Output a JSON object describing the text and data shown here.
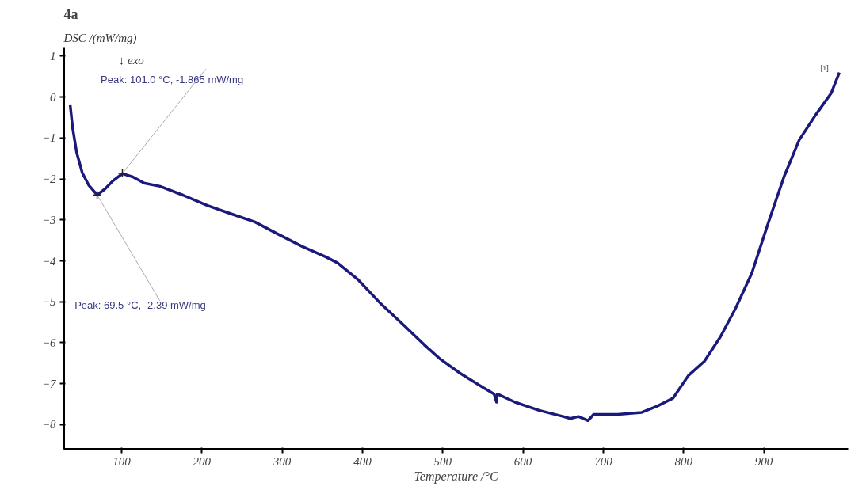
{
  "chart_data": {
    "type": "line",
    "title": "4a",
    "ylabel": "DSC /(mW/mg)",
    "xlabel": "Temperature /°C",
    "x": [
      36,
      39,
      44,
      51,
      59,
      69.5,
      79,
      89,
      101,
      114,
      128,
      148,
      177,
      207,
      236,
      266,
      295,
      325,
      354,
      369,
      394,
      423,
      453,
      477,
      497,
      522,
      551,
      564,
      567,
      568,
      590,
      620,
      650,
      659,
      669,
      681,
      688,
      718,
      748,
      767,
      787,
      806,
      826,
      846,
      865,
      885,
      905,
      925,
      944,
      964,
      984,
      994
    ],
    "series": [
      {
        "color": "#1a1a7a",
        "values": [
          -0.2,
          -0.75,
          -1.35,
          -1.85,
          -2.15,
          -2.39,
          -2.25,
          -2.05,
          -1.87,
          -1.95,
          -2.1,
          -2.18,
          -2.4,
          -2.65,
          -2.85,
          -3.05,
          -3.35,
          -3.65,
          -3.9,
          -4.05,
          -4.45,
          -5.05,
          -5.6,
          -6.05,
          -6.4,
          -6.75,
          -7.1,
          -7.25,
          -7.45,
          -7.25,
          -7.45,
          -7.65,
          -7.8,
          -7.85,
          -7.8,
          -7.9,
          -7.75,
          -7.75,
          -7.7,
          -7.55,
          -7.35,
          -6.8,
          -6.45,
          -5.85,
          -5.15,
          -4.3,
          -3.1,
          -1.95,
          -1.05,
          -0.45,
          0.1,
          0.6
        ]
      }
    ],
    "xlim": [
      28,
      1005
    ],
    "ylim": [
      -8.6,
      1.2
    ],
    "xticks": [
      100,
      200,
      300,
      400,
      500,
      600,
      700,
      800,
      900
    ],
    "yticks": [
      1,
      0,
      -1,
      -2,
      -3,
      -4,
      -5,
      -6,
      -7,
      -8
    ],
    "grid": false,
    "marker": "none",
    "line_style": "solid",
    "annotations": [
      "↓ exo",
      "[1]",
      {
        "text": "Peak: 101.0 °C, -1.865 mW/mg",
        "x": 101.0,
        "y": -1.865
      },
      {
        "text": "Peak: 69.5 °C, -2.39 mW/mg",
        "x": 69.5,
        "y": -2.39
      }
    ]
  }
}
